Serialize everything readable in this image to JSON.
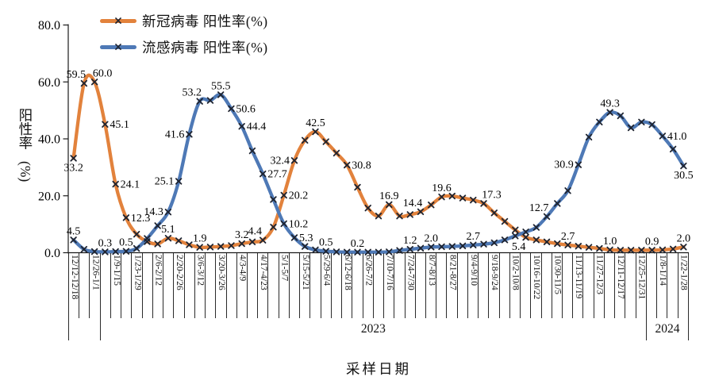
{
  "chart_data": {
    "type": "line",
    "title": "",
    "legend_position": "top-left",
    "grid": false,
    "marker_style": "x-cross",
    "marker_color": "#1f2430",
    "x_axis": {
      "title": "采样日期",
      "week_labels": [
        "12/12-12/18",
        "",
        "12/26-1/1",
        "",
        "1/9-1/15",
        "",
        "1/23-1/29",
        "",
        "2/6-2/12",
        "",
        "2/20-2/26",
        "",
        "3/6-3/12",
        "",
        "3/20-3/26",
        "",
        "4/3-4/9",
        "",
        "4/17-4/23",
        "",
        "5/1-5/7",
        "",
        "5/15-5/21",
        "",
        "5/29-6/4",
        "",
        "6/12-6/18",
        "",
        "6/26-7/2",
        "",
        "7/10-7/16",
        "",
        "7/24-7/30",
        "",
        "8/7-8/13",
        "",
        "8/21-8/27",
        "",
        "9/4-9/10",
        "",
        "9/18-9/24",
        "",
        "10/2-10/8",
        "",
        "10/16-10/22",
        "",
        "10/30-11/5",
        "",
        "11/13-11/19",
        "",
        "11/27-12/3",
        "",
        "12/11-12/17",
        "",
        "12/25-12/31",
        "",
        "1/8-1/14",
        "",
        "1/22-1/28"
      ],
      "year_bands": [
        {
          "label": "",
          "span": 3
        },
        {
          "label": "2023",
          "span": 52
        },
        {
          "label": "2024",
          "span": 4
        }
      ]
    },
    "y_axis": {
      "title": "阳性率",
      "unit": "(%)",
      "min": 0,
      "max": 80,
      "tick_step": 20,
      "ticks": [
        "0.0",
        "20.0",
        "40.0",
        "60.0",
        "80.0"
      ]
    },
    "series": [
      {
        "id": "covid",
        "name": "新冠病毒 阳性率(%)",
        "color": "#E2823C",
        "values": [
          33.2,
          59.5,
          60.0,
          45.1,
          24.1,
          12.3,
          6.5,
          3.9,
          3.1,
          5.1,
          4.2,
          2.8,
          1.9,
          2.0,
          2.2,
          2.5,
          3.2,
          3.8,
          4.4,
          9.0,
          20.2,
          32.4,
          39.5,
          42.5,
          39.0,
          35.0,
          30.8,
          23.0,
          15.7,
          12.9,
          16.9,
          12.9,
          13.4,
          14.4,
          16.8,
          19.6,
          19.9,
          19.2,
          18.5,
          17.3,
          14.0,
          11.0,
          8.0,
          5.4,
          4.5,
          3.8,
          3.2,
          2.7,
          2.3,
          1.9,
          1.5,
          1.0,
          0.9,
          0.9,
          0.9,
          0.9,
          1.0,
          1.3,
          2.0
        ],
        "point_labels": {
          "1": "33.2",
          "2": "59.5",
          "3": "60.0",
          "4": "45.1",
          "5": "24.1",
          "6": "12.3",
          "10": "5.1",
          "13": "1.9",
          "17": "3.2",
          "19": "4.4",
          "21": "20.2",
          "22": "32.4",
          "24": "42.5",
          "27": "30.8",
          "31": "16.9",
          "34": "14.4",
          "36": "19.6",
          "40": "17.3",
          "44": "5.4",
          "48": "2.7",
          "52": "1.0",
          "56": "0.9",
          "59": "2.0"
        },
        "label_pos": {
          "1": "below",
          "2": "above-left",
          "3": "above-right",
          "4": "right",
          "5": "right",
          "6": "right",
          "19": "above-left",
          "21": "right",
          "22": "left",
          "27": "right",
          "34": "above-left",
          "40": "above-right",
          "44": "below-left"
        }
      },
      {
        "id": "flu",
        "name": "流感病毒 阳性率(%)",
        "color": "#4E79B6",
        "values": [
          4.5,
          1.2,
          0.4,
          0.3,
          0.4,
          0.5,
          1.5,
          5.0,
          9.5,
          14.3,
          25.1,
          41.6,
          53.2,
          53.5,
          55.5,
          50.6,
          44.4,
          35.8,
          27.7,
          18.7,
          10.2,
          5.3,
          2.2,
          1.0,
          0.5,
          0.3,
          0.2,
          0.2,
          0.2,
          0.2,
          0.3,
          0.8,
          1.2,
          1.6,
          2.0,
          2.1,
          2.2,
          2.4,
          2.7,
          3.0,
          3.5,
          4.5,
          5.9,
          7.3,
          8.9,
          12.7,
          17.3,
          21.8,
          30.9,
          40.6,
          45.9,
          49.3,
          48.1,
          43.9,
          45.9,
          45.0,
          41.0,
          36.4,
          30.5
        ],
        "point_labels": {
          "1": "4.5",
          "4": "0.3",
          "6": "0.5",
          "10": "14.3",
          "11": "25.1",
          "12": "41.6",
          "13": "53.2",
          "15": "55.5",
          "16": "50.6",
          "17": "44.4",
          "19": "27.7",
          "21": "10.2",
          "22": "5.3",
          "25": "0.5",
          "28": "0.2",
          "33": "1.2",
          "35": "2.0",
          "39": "2.7",
          "46": "12.7",
          "49": "30.9",
          "52": "49.3",
          "57": "41.0",
          "59": "30.5"
        },
        "label_pos": {
          "10": "left",
          "11": "left",
          "12": "left",
          "13": "above-left",
          "16": "right",
          "17": "right",
          "19": "right",
          "21": "right",
          "22": "right",
          "46": "above-left",
          "49": "left",
          "57": "right",
          "59": "below"
        }
      }
    ]
  }
}
